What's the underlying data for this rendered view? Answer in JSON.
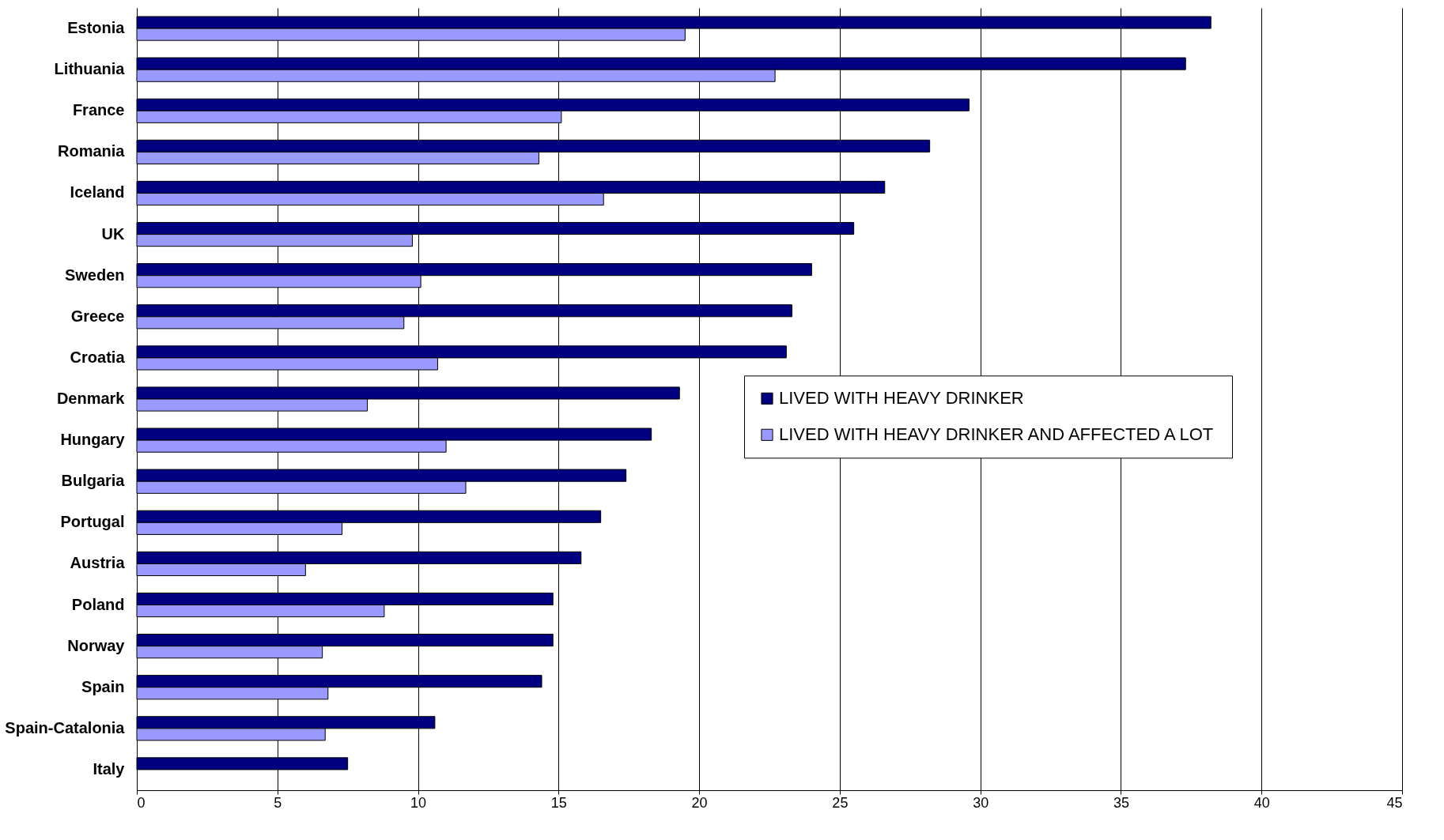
{
  "chart_data": {
    "type": "bar",
    "orientation": "horizontal",
    "categories": [
      "Estonia",
      "Lithuania",
      "France",
      "Romania",
      "Iceland",
      "UK",
      "Sweden",
      "Greece",
      "Croatia",
      "Denmark",
      "Hungary",
      "Bulgaria",
      "Portugal",
      "Austria",
      "Poland",
      "Norway",
      "Spain",
      "Spain-Catalonia",
      "Italy"
    ],
    "series": [
      {
        "name": "LIVED WITH HEAVY DRINKER",
        "color": "#000080",
        "values": [
          38.2,
          37.3,
          29.6,
          28.2,
          26.6,
          25.5,
          24.0,
          23.3,
          23.1,
          19.3,
          18.3,
          17.4,
          16.5,
          15.8,
          14.8,
          14.8,
          14.4,
          10.6,
          7.5
        ]
      },
      {
        "name": "LIVED WITH HEAVY DRINKER AND AFFECTED A LOT",
        "color": "#9999ff",
        "values": [
          19.5,
          22.7,
          15.1,
          14.3,
          16.6,
          9.8,
          10.1,
          9.5,
          10.7,
          8.2,
          11.0,
          11.7,
          7.3,
          6.0,
          8.8,
          6.6,
          6.8,
          6.7,
          null
        ]
      }
    ],
    "xlim": [
      0,
      45
    ],
    "xticks": [
      0,
      5,
      10,
      15,
      20,
      25,
      30,
      35,
      40,
      45
    ],
    "grid": "x",
    "legend": "right"
  }
}
